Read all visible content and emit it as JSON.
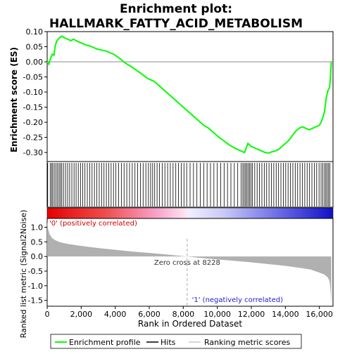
{
  "chart_data": {
    "type": "line",
    "title_line1": "Enrichment plot:",
    "title_line2": "HALLMARK_FATTY_ACID_METABOLISM",
    "x_axis": {
      "label": "Rank in Ordered Dataset",
      "range": [
        0,
        16800
      ],
      "ticks": [
        0,
        2000,
        4000,
        6000,
        8000,
        10000,
        12000,
        14000,
        16000
      ],
      "tick_labels": [
        "0",
        "2,000",
        "4,000",
        "6,000",
        "8,000",
        "10,000",
        "12,000",
        "14,000",
        "16,000"
      ]
    },
    "top_panel": {
      "ylabel": "Enrichment score (ES)",
      "ylim": [
        -0.33,
        0.1
      ],
      "ticks": [
        0.1,
        0.05,
        0.0,
        -0.05,
        -0.1,
        -0.15,
        -0.2,
        -0.25,
        -0.3
      ],
      "tick_labels": [
        "0.10",
        "0.05",
        "0.00",
        "-0.05",
        "-0.10",
        "-0.15",
        "-0.20",
        "-0.25",
        "-0.30"
      ],
      "series": [
        {
          "name": "Enrichment profile",
          "color": "#00ff00",
          "x": [
            0,
            100,
            200,
            300,
            400,
            450,
            550,
            700,
            850,
            1000,
            1200,
            1400,
            1550,
            1700,
            1900,
            2100,
            2300,
            2500,
            2700,
            2900,
            3100,
            3300,
            3500,
            3700,
            3900,
            4100,
            4300,
            4500,
            4700,
            5000,
            5300,
            5600,
            5900,
            6100,
            6300,
            6500,
            6800,
            7100,
            7400,
            7700,
            8000,
            8300,
            8600,
            8900,
            9200,
            9500,
            9800,
            10100,
            10400,
            10700,
            11000,
            11200,
            11400,
            11500,
            11600,
            11700,
            11800,
            11900,
            12000,
            12200,
            12400,
            12600,
            12800,
            13000,
            13200,
            13400,
            13600,
            13800,
            14000,
            14200,
            14400,
            14600,
            14800,
            15000,
            15200,
            15400,
            15600,
            15800,
            16000,
            16100,
            16200,
            16300,
            16400,
            16500,
            16600,
            16650,
            16700
          ],
          "y": [
            0.0,
            -0.008,
            0.012,
            0.025,
            0.022,
            0.045,
            0.068,
            0.078,
            0.085,
            0.08,
            0.075,
            0.07,
            0.075,
            0.07,
            0.065,
            0.06,
            0.055,
            0.053,
            0.048,
            0.043,
            0.04,
            0.038,
            0.035,
            0.03,
            0.025,
            0.018,
            0.01,
            0.0,
            -0.008,
            -0.018,
            -0.03,
            -0.042,
            -0.055,
            -0.06,
            -0.065,
            -0.075,
            -0.09,
            -0.105,
            -0.12,
            -0.135,
            -0.15,
            -0.165,
            -0.18,
            -0.195,
            -0.21,
            -0.22,
            -0.235,
            -0.25,
            -0.262,
            -0.275,
            -0.285,
            -0.29,
            -0.295,
            -0.298,
            -0.3,
            -0.285,
            -0.27,
            -0.275,
            -0.28,
            -0.285,
            -0.29,
            -0.295,
            -0.3,
            -0.302,
            -0.298,
            -0.295,
            -0.29,
            -0.28,
            -0.27,
            -0.26,
            -0.245,
            -0.23,
            -0.22,
            -0.215,
            -0.22,
            -0.225,
            -0.22,
            -0.215,
            -0.21,
            -0.2,
            -0.185,
            -0.165,
            -0.12,
            -0.095,
            -0.085,
            -0.05,
            0.0
          ]
        }
      ]
    },
    "hits_panel": {
      "legend_name": "Hits",
      "hit_positions": [
        30,
        180,
        260,
        330,
        420,
        520,
        610,
        700,
        780,
        860,
        960,
        1080,
        1200,
        1320,
        1450,
        1580,
        1700,
        1830,
        1960,
        2090,
        2220,
        2360,
        2500,
        2640,
        2780,
        2920,
        3060,
        3200,
        3340,
        3480,
        3620,
        3760,
        3900,
        4040,
        4200,
        4360,
        4520,
        4680,
        4840,
        5000,
        5160,
        5320,
        5480,
        5640,
        5800,
        5950,
        6080,
        6200,
        6320,
        6460,
        6600,
        6760,
        6920,
        7080,
        7240,
        7400,
        7560,
        7720,
        7880,
        8040,
        8200,
        8400,
        8600,
        8800,
        9000,
        9200,
        9400,
        9600,
        9800,
        10000,
        10200,
        10400,
        10600,
        10800,
        11000,
        11200,
        11400,
        11500,
        11580,
        11660,
        11740,
        11820,
        11900,
        11980,
        12060,
        12200,
        12340,
        12480,
        12620,
        12760,
        12900,
        13040,
        13180,
        13320,
        13460,
        13600,
        13740,
        13880,
        14020,
        14160,
        14300,
        14440,
        14580,
        14720,
        14860,
        15000,
        15140,
        15280,
        15420,
        15560,
        15700,
        15840,
        15980,
        16100,
        16200,
        16300,
        16380,
        16460,
        16540,
        16620
      ]
    },
    "color_bar": {
      "positive_label": "'0' (positively correlated)",
      "negative_label": "'1' (negatively correlated)",
      "positive_color": "#ff0000",
      "neutral_color": "#ffffff",
      "negative_color": "#0000ff"
    },
    "bottom_panel": {
      "ylabel": "Ranked list metric (Signal2Noise)",
      "ylim": [
        -1.7,
        1.3
      ],
      "ticks": [
        1.0,
        0.5,
        0.0,
        -0.5,
        -1.0,
        -1.5
      ],
      "tick_labels": [
        "1.0",
        "0.5",
        "0.0",
        "-0.5",
        "-1.0",
        "-1.5"
      ],
      "series": [
        {
          "name": "Ranking metric scores",
          "color": "#b0b0b0",
          "x": [
            0,
            50,
            150,
            300,
            500,
            800,
            1200,
            2000,
            3000,
            4000,
            5000,
            6000,
            7000,
            8228,
            9000,
            10000,
            11000,
            12000,
            13000,
            14000,
            15000,
            15500,
            16000,
            16300,
            16500,
            16600,
            16650,
            16700
          ],
          "y": [
            1.2,
            0.95,
            0.75,
            0.62,
            0.55,
            0.48,
            0.43,
            0.36,
            0.29,
            0.23,
            0.17,
            0.12,
            0.07,
            0.0,
            -0.05,
            -0.1,
            -0.15,
            -0.2,
            -0.26,
            -0.32,
            -0.4,
            -0.45,
            -0.55,
            -0.62,
            -0.72,
            -0.85,
            -1.1,
            -1.6
          ]
        }
      ],
      "zero_cross_label": "Zero cross at 8228",
      "zero_cross_x": 8228
    },
    "legend": {
      "entries": [
        "Enrichment profile",
        "Hits",
        "Ranking metric scores"
      ],
      "placement": "bottom"
    }
  }
}
